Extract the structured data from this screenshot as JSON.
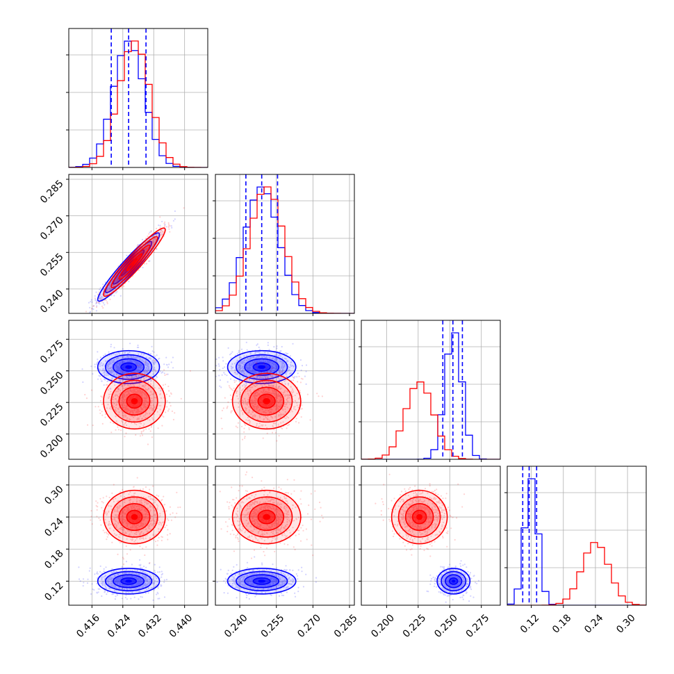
{
  "chart_data": {
    "type": "corner",
    "params": [
      {
        "xlim": [
          0.41,
          0.446
        ],
        "ticks": [
          "0.416",
          "0.424",
          "0.432",
          "0.440"
        ]
      },
      {
        "xlim": [
          0.23,
          0.287
        ],
        "ticks": [
          "0.240",
          "0.255",
          "0.270",
          "0.285"
        ]
      },
      {
        "xlim": [
          0.18,
          0.29
        ],
        "ticks": [
          "0.200",
          "0.225",
          "0.250",
          "0.275"
        ]
      },
      {
        "xlim": [
          0.075,
          0.335
        ],
        "ticks": [
          "0.12",
          "0.18",
          "0.24",
          "0.30"
        ]
      }
    ],
    "series": [
      {
        "color": "#0000ff",
        "means": [
          0.4255,
          0.249,
          0.253,
          0.12
        ],
        "sds": [
          0.004,
          0.007,
          0.0065,
          0.012
        ],
        "correlations": [
          [
            0,
            1,
            0.95
          ]
        ],
        "quantiles": [
          [
            0.421,
            0.4255,
            0.43
          ],
          [
            0.2425,
            0.249,
            0.2555
          ],
          [
            0.2445,
            0.2525,
            0.26
          ],
          [
            0.104,
            0.116,
            0.13
          ]
        ]
      },
      {
        "color": "#ff0000",
        "means": [
          0.427,
          0.251,
          0.226,
          0.24
        ],
        "sds": [
          0.004,
          0.007,
          0.011,
          0.025
        ],
        "correlations": [
          [
            0,
            1,
            0.95
          ]
        ]
      }
    ],
    "grid": true,
    "legend": "none"
  }
}
